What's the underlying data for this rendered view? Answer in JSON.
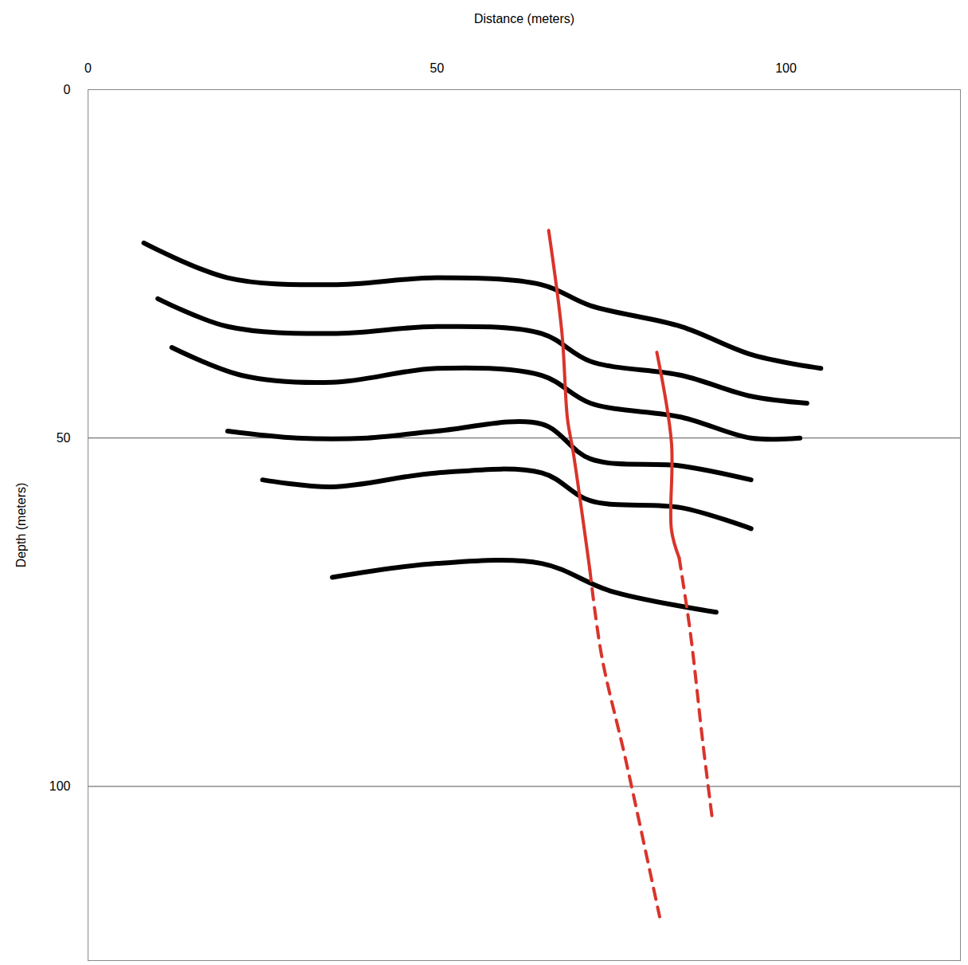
{
  "chart_data": {
    "type": "line",
    "x_label": "Distance (meters)",
    "y_label": "Depth (meters)",
    "xlim": [
      0,
      125
    ],
    "ylim": [
      0,
      125
    ],
    "xticks": [
      0,
      50,
      100
    ],
    "yticks": [
      0,
      50,
      100
    ],
    "grid": "y",
    "series": [
      {
        "color": "#000000",
        "line_style": "solid",
        "x": [
          8,
          20,
          35,
          50,
          65,
          72,
          85,
          95,
          105
        ],
        "values": [
          22,
          27,
          28,
          27,
          28,
          31,
          34,
          38,
          40
        ]
      },
      {
        "color": "#000000",
        "line_style": "solid",
        "x": [
          10,
          20,
          35,
          50,
          65,
          72,
          85,
          95,
          103
        ],
        "values": [
          30,
          34,
          35,
          34,
          35,
          39,
          41,
          44,
          45
        ]
      },
      {
        "color": "#000000",
        "line_style": "solid",
        "x": [
          12,
          22,
          35,
          50,
          65,
          72,
          85,
          95,
          102
        ],
        "values": [
          37,
          41,
          42,
          40,
          41,
          45,
          47,
          50,
          50
        ]
      },
      {
        "color": "#000000",
        "line_style": "solid",
        "x": [
          20,
          30,
          40,
          50,
          65,
          72,
          85,
          95
        ],
        "values": [
          49,
          50,
          50,
          49,
          48,
          53,
          54,
          56
        ]
      },
      {
        "color": "#000000",
        "line_style": "solid",
        "x": [
          25,
          35,
          50,
          65,
          72,
          85,
          95
        ],
        "values": [
          56,
          57,
          55,
          55,
          59,
          60,
          63
        ]
      },
      {
        "color": "#000000",
        "line_style": "solid",
        "x": [
          35,
          50,
          65,
          75,
          90
        ],
        "values": [
          70,
          68,
          68,
          72,
          75
        ]
      },
      {
        "color": "#d9342b",
        "line_style": "solid",
        "x": [
          66.0,
          67.9,
          68.7,
          69.5,
          71.9
        ],
        "values": [
          20.2,
          34.9,
          47.3,
          51.9,
          68.9
        ]
      },
      {
        "color": "#d9342b",
        "line_style": "dashed",
        "x": [
          71.9,
          73.6,
          77.0,
          81.9
        ],
        "values": [
          68.9,
          81.3,
          96.0,
          118.7
        ]
      },
      {
        "color": "#d9342b",
        "line_style": "solid",
        "x": [
          81.5,
          83.6,
          83.6,
          84.7
        ],
        "values": [
          37.7,
          50.7,
          63.2,
          67.2
        ]
      },
      {
        "color": "#d9342b",
        "line_style": "dashed",
        "x": [
          84.7,
          86.3,
          88.1,
          89.5
        ],
        "values": [
          67.2,
          77.9,
          93.8,
          105.1
        ]
      }
    ]
  }
}
